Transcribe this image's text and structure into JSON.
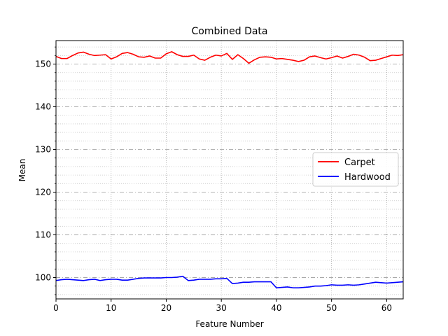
{
  "chart_data": {
    "type": "line",
    "title": "Combined Data",
    "xlabel": "Feature Number",
    "ylabel": "Mean",
    "xlim": [
      0,
      63
    ],
    "ylim": [
      95,
      155.5
    ],
    "xticks": [
      0,
      10,
      20,
      30,
      40,
      50,
      60
    ],
    "yticks": [
      100,
      110,
      120,
      130,
      140,
      150
    ],
    "grid": {
      "major": true,
      "minor": true
    },
    "legend_position": "center-right",
    "series": [
      {
        "name": "Carpet",
        "color": "#ff0000",
        "x": [
          0,
          1,
          2,
          3,
          4,
          5,
          6,
          7,
          8,
          9,
          10,
          11,
          12,
          13,
          14,
          15,
          16,
          17,
          18,
          19,
          20,
          21,
          22,
          23,
          24,
          25,
          26,
          27,
          28,
          29,
          30,
          31,
          32,
          33,
          34,
          35,
          36,
          37,
          38,
          39,
          40,
          41,
          42,
          43,
          44,
          45,
          46,
          47,
          48,
          49,
          50,
          51,
          52,
          53,
          54,
          55,
          56,
          57,
          58,
          59,
          60,
          61,
          62,
          63
        ],
        "values": [
          151.8,
          151.3,
          151.3,
          152.0,
          152.6,
          152.8,
          152.3,
          152.0,
          152.1,
          152.2,
          151.2,
          151.7,
          152.5,
          152.7,
          152.3,
          151.7,
          151.6,
          151.9,
          151.4,
          151.4,
          152.4,
          152.9,
          152.2,
          151.8,
          151.8,
          152.1,
          151.2,
          150.9,
          151.6,
          152.1,
          151.9,
          152.5,
          151.1,
          152.2,
          151.3,
          150.2,
          151.0,
          151.6,
          151.7,
          151.6,
          151.2,
          151.3,
          151.1,
          150.9,
          150.6,
          150.9,
          151.7,
          151.9,
          151.5,
          151.2,
          151.5,
          151.9,
          151.4,
          151.8,
          152.3,
          152.1,
          151.6,
          150.8,
          150.9,
          151.3,
          151.7,
          152.1,
          152.0,
          152.2
        ]
      },
      {
        "name": "Hardwood",
        "color": "#0000ff",
        "x": [
          0,
          1,
          2,
          3,
          4,
          5,
          6,
          7,
          8,
          9,
          10,
          11,
          12,
          13,
          14,
          15,
          16,
          17,
          18,
          19,
          20,
          21,
          22,
          23,
          24,
          25,
          26,
          27,
          28,
          29,
          30,
          31,
          32,
          33,
          34,
          35,
          36,
          37,
          38,
          39,
          40,
          41,
          42,
          43,
          44,
          45,
          46,
          47,
          48,
          49,
          50,
          51,
          52,
          53,
          54,
          55,
          56,
          57,
          58,
          59,
          60,
          61,
          62,
          63
        ],
        "values": [
          99.3,
          99.5,
          99.6,
          99.5,
          99.4,
          99.3,
          99.5,
          99.6,
          99.3,
          99.5,
          99.6,
          99.6,
          99.4,
          99.4,
          99.6,
          99.8,
          99.9,
          99.9,
          99.9,
          99.9,
          100.0,
          100.0,
          100.1,
          100.3,
          99.3,
          99.4,
          99.6,
          99.6,
          99.6,
          99.7,
          99.7,
          99.8,
          98.6,
          98.7,
          98.9,
          98.9,
          99.0,
          99.0,
          99.0,
          99.0,
          97.6,
          97.7,
          97.8,
          97.6,
          97.6,
          97.7,
          97.8,
          98.0,
          98.0,
          98.1,
          98.3,
          98.2,
          98.2,
          98.3,
          98.2,
          98.3,
          98.5,
          98.7,
          98.9,
          98.8,
          98.7,
          98.8,
          98.9,
          99.0
        ]
      }
    ]
  }
}
